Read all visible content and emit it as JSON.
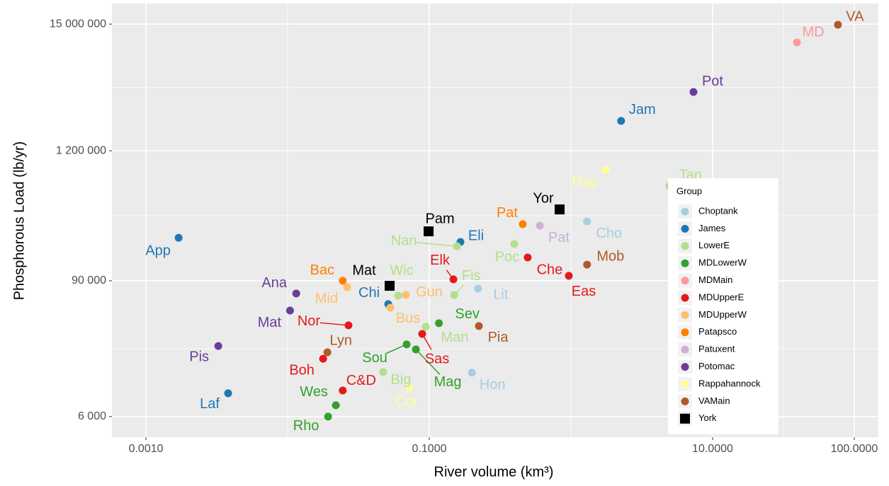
{
  "chart_data": {
    "type": "scatter",
    "xlabel": "River volume (km³)",
    "ylabel": "Phosphorous Load (lb/yr)",
    "xlog": true,
    "ylog": true,
    "grid": true,
    "minor_grid": true,
    "xlim": [
      0.000575,
      148
    ],
    "ylim": [
      3980,
      22600000
    ],
    "xticks": [
      {
        "value": 0.001,
        "label": "0.0010"
      },
      {
        "value": 0.1,
        "label": "0.1000"
      },
      {
        "value": 10,
        "label": "10.0000"
      },
      {
        "value": 100,
        "label": "100.0000"
      }
    ],
    "yticks": [
      {
        "value": 6000,
        "label": "6 000"
      },
      {
        "value": 90000,
        "label": "90 000"
      },
      {
        "value": 1200000,
        "label": "1 200 000"
      },
      {
        "value": 15000000,
        "label": "15 000 000"
      }
    ],
    "legend_title": "Group",
    "legend_loc": "right",
    "series": [
      {
        "name": "Choptank",
        "color": "#a6cee3",
        "marker": "circle",
        "labels": [
          "Cho",
          "Lit",
          "Hon"
        ],
        "x": [
          1.3,
          0.221,
          0.2
        ],
        "values": [
          294000,
          76900,
          14400
        ]
      },
      {
        "name": "James",
        "color": "#1f78b4",
        "marker": "circle",
        "labels": [
          "Jam",
          "Eli",
          "Chi",
          "Laf",
          "App"
        ],
        "x": [
          2.26,
          0.166,
          0.0513,
          0.0038,
          0.0017
        ],
        "values": [
          2180000,
          195000,
          56500,
          9550,
          212000
        ]
      },
      {
        "name": "LowerE",
        "color": "#b2df8a",
        "marker": "circle",
        "labels": [
          "Tan",
          "Nan",
          "Poc",
          "Fis",
          "Wic",
          "Man",
          "Big"
        ],
        "x": [
          4.95,
          0.157,
          0.398,
          0.15,
          0.0603,
          0.0944,
          0.0473
        ],
        "values": [
          594000,
          179000,
          187000,
          67800,
          66800,
          36000,
          14600
        ]
      },
      {
        "name": "MDLowerW",
        "color": "#33a02c",
        "marker": "circle",
        "labels": [
          "Sev",
          "Sou",
          "Mag",
          "Wes",
          "Rho"
        ],
        "x": [
          0.117,
          0.0692,
          0.0804,
          0.0219,
          0.0193
        ],
        "values": [
          38600,
          25300,
          22900,
          7520,
          6000
        ]
      },
      {
        "name": "MDMain",
        "color": "#fb9a99",
        "marker": "circle",
        "labels": [
          "MD"
        ],
        "x": [
          39.4
        ],
        "values": [
          10400000
        ]
      },
      {
        "name": "MDUpperE",
        "color": "#e31a1c",
        "marker": "circle",
        "labels": [
          "Che",
          "Eas",
          "Elk",
          "Nor",
          "Sas",
          "Boh",
          "C&D"
        ],
        "x": [
          0.495,
          0.966,
          0.148,
          0.0269,
          0.0891,
          0.0178,
          0.0245
        ],
        "values": [
          143000,
          99300,
          92500,
          37000,
          31200,
          19000,
          10100
        ]
      },
      {
        "name": "MDUpperW",
        "color": "#fdbf6f",
        "marker": "circle",
        "labels": [
          "Gun",
          "Bus",
          "Mid"
        ],
        "x": [
          0.0684,
          0.0531,
          0.0263
        ],
        "values": [
          67800,
          52600,
          79300
        ]
      },
      {
        "name": "Patapsco",
        "color": "#ff7f00",
        "marker": "circle",
        "labels": [
          "Pat",
          "Bac"
        ],
        "x": [
          0.457,
          0.0245
        ],
        "values": [
          278000,
          90000
        ]
      },
      {
        "name": "Patuxent",
        "color": "#cab2d6",
        "marker": "circle",
        "labels": [
          "Pat"
        ],
        "x": [
          0.603
        ],
        "values": [
          270000
        ]
      },
      {
        "name": "Potomac",
        "color": "#6a3d9a",
        "marker": "circle",
        "labels": [
          "Pot",
          "Ana",
          "Mat",
          "Pis"
        ],
        "x": [
          7.33,
          0.0115,
          0.0104,
          0.00324
        ],
        "values": [
          3880000,
          69800,
          49700,
          24500
        ]
      },
      {
        "name": "Rappahannock",
        "color": "#ffff99",
        "marker": "circle",
        "labels": [
          "Rap",
          "Cor"
        ],
        "x": [
          1.76,
          0.0724
        ],
        "values": [
          822000,
          10700
        ]
      },
      {
        "name": "VAMain",
        "color": "#b15928",
        "marker": "circle",
        "labels": [
          "VA",
          "Mob",
          "Pia",
          "Lyn"
        ],
        "x": [
          76.7,
          1.3,
          0.224,
          0.0191
        ],
        "values": [
          14800000,
          124000,
          36500,
          21600
        ]
      },
      {
        "name": "York",
        "color": "#000000",
        "marker": "square",
        "labels": [
          "Yor",
          "Pam",
          "Mat"
        ],
        "x": [
          0.832,
          0.0989,
          0.0525
        ],
        "values": [
          373000,
          241000,
          81400
        ]
      }
    ]
  }
}
